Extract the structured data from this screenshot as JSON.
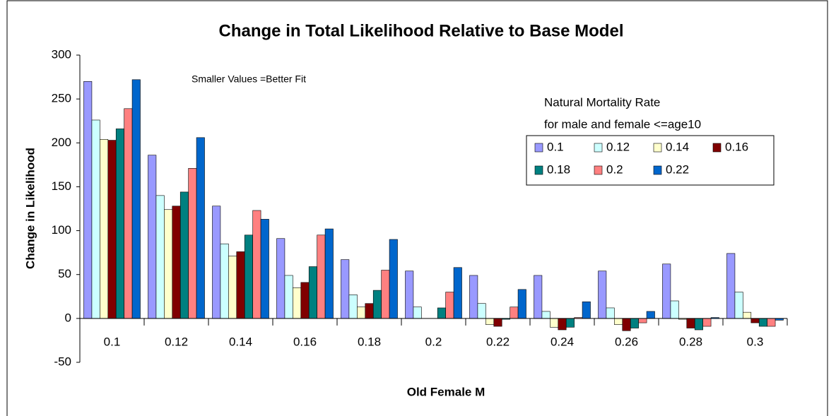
{
  "chart_data": {
    "type": "bar",
    "title": "Change in Total Likelihood Relative to Base Model",
    "annotation": "Smaller Values =Better Fit",
    "x_label": "Old Female M",
    "y_label": "Change in Likelihood",
    "legend_title": [
      "Natural Mortality Rate",
      "for male and female <=age10"
    ],
    "categories": [
      "0.1",
      "0.12",
      "0.14",
      "0.16",
      "0.18",
      "0.2",
      "0.22",
      "0.24",
      "0.26",
      "0.28",
      "0.3"
    ],
    "series": [
      {
        "name": "0.1",
        "color": "#9999ff",
        "values": [
          270,
          186,
          128,
          91,
          67,
          54,
          49,
          49,
          54,
          62,
          74
        ]
      },
      {
        "name": "0.12",
        "color": "#ccffff",
        "values": [
          226,
          140,
          85,
          49,
          27,
          13,
          17,
          8,
          12,
          20,
          30
        ]
      },
      {
        "name": "0.14",
        "color": "#ffffcc",
        "values": [
          204,
          124,
          71,
          35,
          13,
          0,
          -7,
          -10,
          -7,
          -1,
          7
        ]
      },
      {
        "name": "0.16",
        "color": "#800000",
        "values": [
          203,
          128,
          76,
          41,
          17,
          0,
          -9,
          -13,
          -14,
          -11,
          -5
        ]
      },
      {
        "name": "0.18",
        "color": "#008080",
        "values": [
          216,
          144,
          95,
          59,
          32,
          12,
          -1,
          -10,
          -11,
          -13,
          -9
        ]
      },
      {
        "name": "0.2",
        "color": "#ff8080",
        "values": [
          239,
          171,
          123,
          95,
          55,
          30,
          13,
          1,
          -5,
          -9,
          -9
        ]
      },
      {
        "name": "0.22",
        "color": "#0066cc",
        "values": [
          272,
          206,
          113,
          102,
          90,
          58,
          33,
          19,
          8,
          1,
          -2
        ]
      }
    ],
    "ylim": [
      -50,
      300
    ],
    "yticks": [
      -50,
      0,
      50,
      100,
      150,
      200,
      250,
      300
    ]
  }
}
